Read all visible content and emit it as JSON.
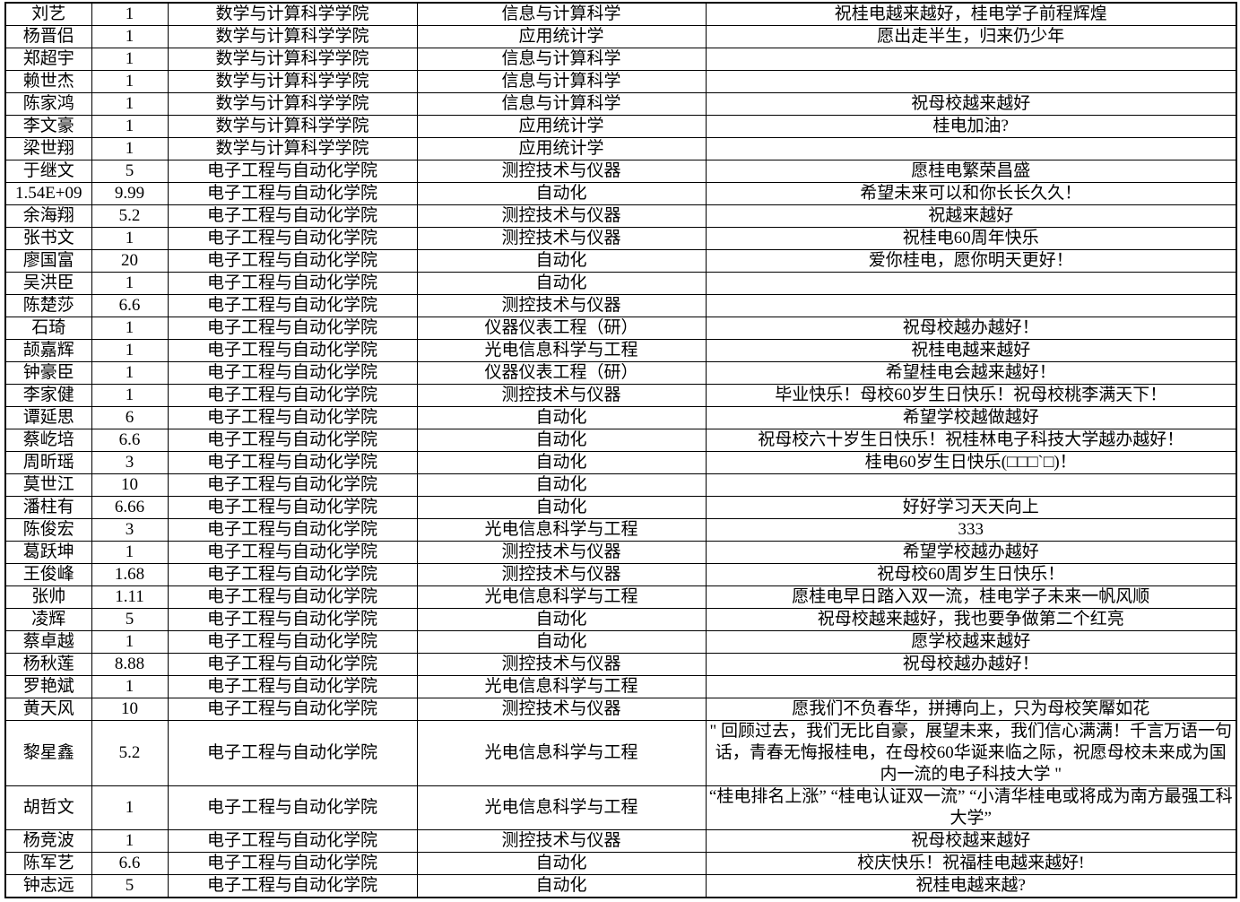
{
  "colors": {
    "background": "#ffffff",
    "border": "#000000",
    "text": "#000000"
  },
  "table": {
    "column_keys": [
      "name",
      "amount",
      "college",
      "major",
      "message"
    ],
    "rows": [
      [
        "刘艺",
        "1",
        "数学与计算科学学院",
        "信息与计算科学",
        "祝桂电越来越好，桂电学子前程辉煌"
      ],
      [
        "杨晋侣",
        "1",
        "数学与计算科学学院",
        "应用统计学",
        "愿出走半生，归来仍少年"
      ],
      [
        "郑超宇",
        "1",
        "数学与计算科学学院",
        "信息与计算科学",
        ""
      ],
      [
        "赖世杰",
        "1",
        "数学与计算科学学院",
        "信息与计算科学",
        ""
      ],
      [
        "陈家鸿",
        "1",
        "数学与计算科学学院",
        "信息与计算科学",
        "祝母校越来越好"
      ],
      [
        "李文豪",
        "1",
        "数学与计算科学学院",
        "应用统计学",
        "桂电加油?"
      ],
      [
        "梁世翔",
        "1",
        "数学与计算科学学院",
        "应用统计学",
        ""
      ],
      [
        "于继文",
        "5",
        "电子工程与自动化学院",
        "测控技术与仪器",
        "愿桂电繁荣昌盛"
      ],
      [
        "1.54E+09",
        "9.99",
        "电子工程与自动化学院",
        "自动化",
        "希望未来可以和你长长久久！"
      ],
      [
        "余海翔",
        "5.2",
        "电子工程与自动化学院",
        "测控技术与仪器",
        "祝越来越好"
      ],
      [
        "张书文",
        "1",
        "电子工程与自动化学院",
        "测控技术与仪器",
        "祝桂电60周年快乐"
      ],
      [
        "廖国富",
        "20",
        "电子工程与自动化学院",
        "自动化",
        "爱你桂电，愿你明天更好！"
      ],
      [
        "吴洪臣",
        "1",
        "电子工程与自动化学院",
        "自动化",
        ""
      ],
      [
        "陈楚莎",
        "6.6",
        "电子工程与自动化学院",
        "测控技术与仪器",
        ""
      ],
      [
        "石琦",
        "1",
        "电子工程与自动化学院",
        "仪器仪表工程（研）",
        "祝母校越办越好！"
      ],
      [
        "颉嘉辉",
        "1",
        "电子工程与自动化学院",
        "光电信息科学与工程",
        "祝桂电越来越好"
      ],
      [
        "钟豪臣",
        "1",
        "电子工程与自动化学院",
        "仪器仪表工程（研）",
        "希望桂电会越来越好！"
      ],
      [
        "李家健",
        "1",
        "电子工程与自动化学院",
        "测控技术与仪器",
        "毕业快乐！母校60岁生日快乐！祝母校桃李满天下！"
      ],
      [
        "谭延思",
        "6",
        "电子工程与自动化学院",
        "自动化",
        "希望学校越做越好"
      ],
      [
        "蔡屹培",
        "6.6",
        "电子工程与自动化学院",
        "自动化",
        "祝母校六十岁生日快乐！祝桂林电子科技大学越办越好！"
      ],
      [
        "周昕瑶",
        "3",
        "电子工程与自动化学院",
        "自动化",
        "桂电60岁生日快乐(□□□`□)！"
      ],
      [
        "莫世江",
        "10",
        "电子工程与自动化学院",
        "自动化",
        ""
      ],
      [
        "潘柱有",
        "6.66",
        "电子工程与自动化学院",
        "自动化",
        "好好学习天天向上"
      ],
      [
        "陈俊宏",
        "3",
        "电子工程与自动化学院",
        "光电信息科学与工程",
        "333"
      ],
      [
        "葛跃坤",
        "1",
        "电子工程与自动化学院",
        "测控技术与仪器",
        "希望学校越办越好"
      ],
      [
        "王俊峰",
        "1.68",
        "电子工程与自动化学院",
        "测控技术与仪器",
        "祝母校60周岁生日快乐！"
      ],
      [
        "张帅",
        "1.11",
        "电子工程与自动化学院",
        "光电信息科学与工程",
        "愿桂电早日踏入双一流，桂电学子未来一帆风顺"
      ],
      [
        "凌辉",
        "5",
        "电子工程与自动化学院",
        "自动化",
        "祝母校越来越好，我也要争做第二个红亮"
      ],
      [
        "蔡卓越",
        "1",
        "电子工程与自动化学院",
        "自动化",
        "愿学校越来越好"
      ],
      [
        "杨秋莲",
        "8.88",
        "电子工程与自动化学院",
        "测控技术与仪器",
        "祝母校越办越好！"
      ],
      [
        "罗艳斌",
        "1",
        "电子工程与自动化学院",
        "光电信息科学与工程",
        ""
      ],
      [
        "黄天风",
        "10",
        "电子工程与自动化学院",
        "测控技术与仪器",
        "愿我们不负春华，拼搏向上，只为母校笑厴如花"
      ],
      [
        "黎星鑫",
        "5.2",
        "电子工程与自动化学院",
        "光电信息科学与工程",
        "\" 回顾过去，我们无比自豪，展望未来，我们信心满满！千言万语一句话，青春无悔报桂电，在母校60华诞来临之际，祝愿母校未来成为国内一流的电子科技大学 \""
      ],
      [
        "胡哲文",
        "1",
        "电子工程与自动化学院",
        "光电信息科学与工程",
        "“桂电排名上涨” “桂电认证双一流” “小清华桂电或将成为南方最强工科大学”"
      ],
      [
        "杨竞波",
        "1",
        "电子工程与自动化学院",
        "测控技术与仪器",
        "祝母校越来越好"
      ],
      [
        "陈军艺",
        "6.6",
        "电子工程与自动化学院",
        "自动化",
        "校庆快乐！祝福桂电越来越好!"
      ],
      [
        "钟志远",
        "5",
        "电子工程与自动化学院",
        "自动化",
        "祝桂电越来越?"
      ]
    ]
  }
}
